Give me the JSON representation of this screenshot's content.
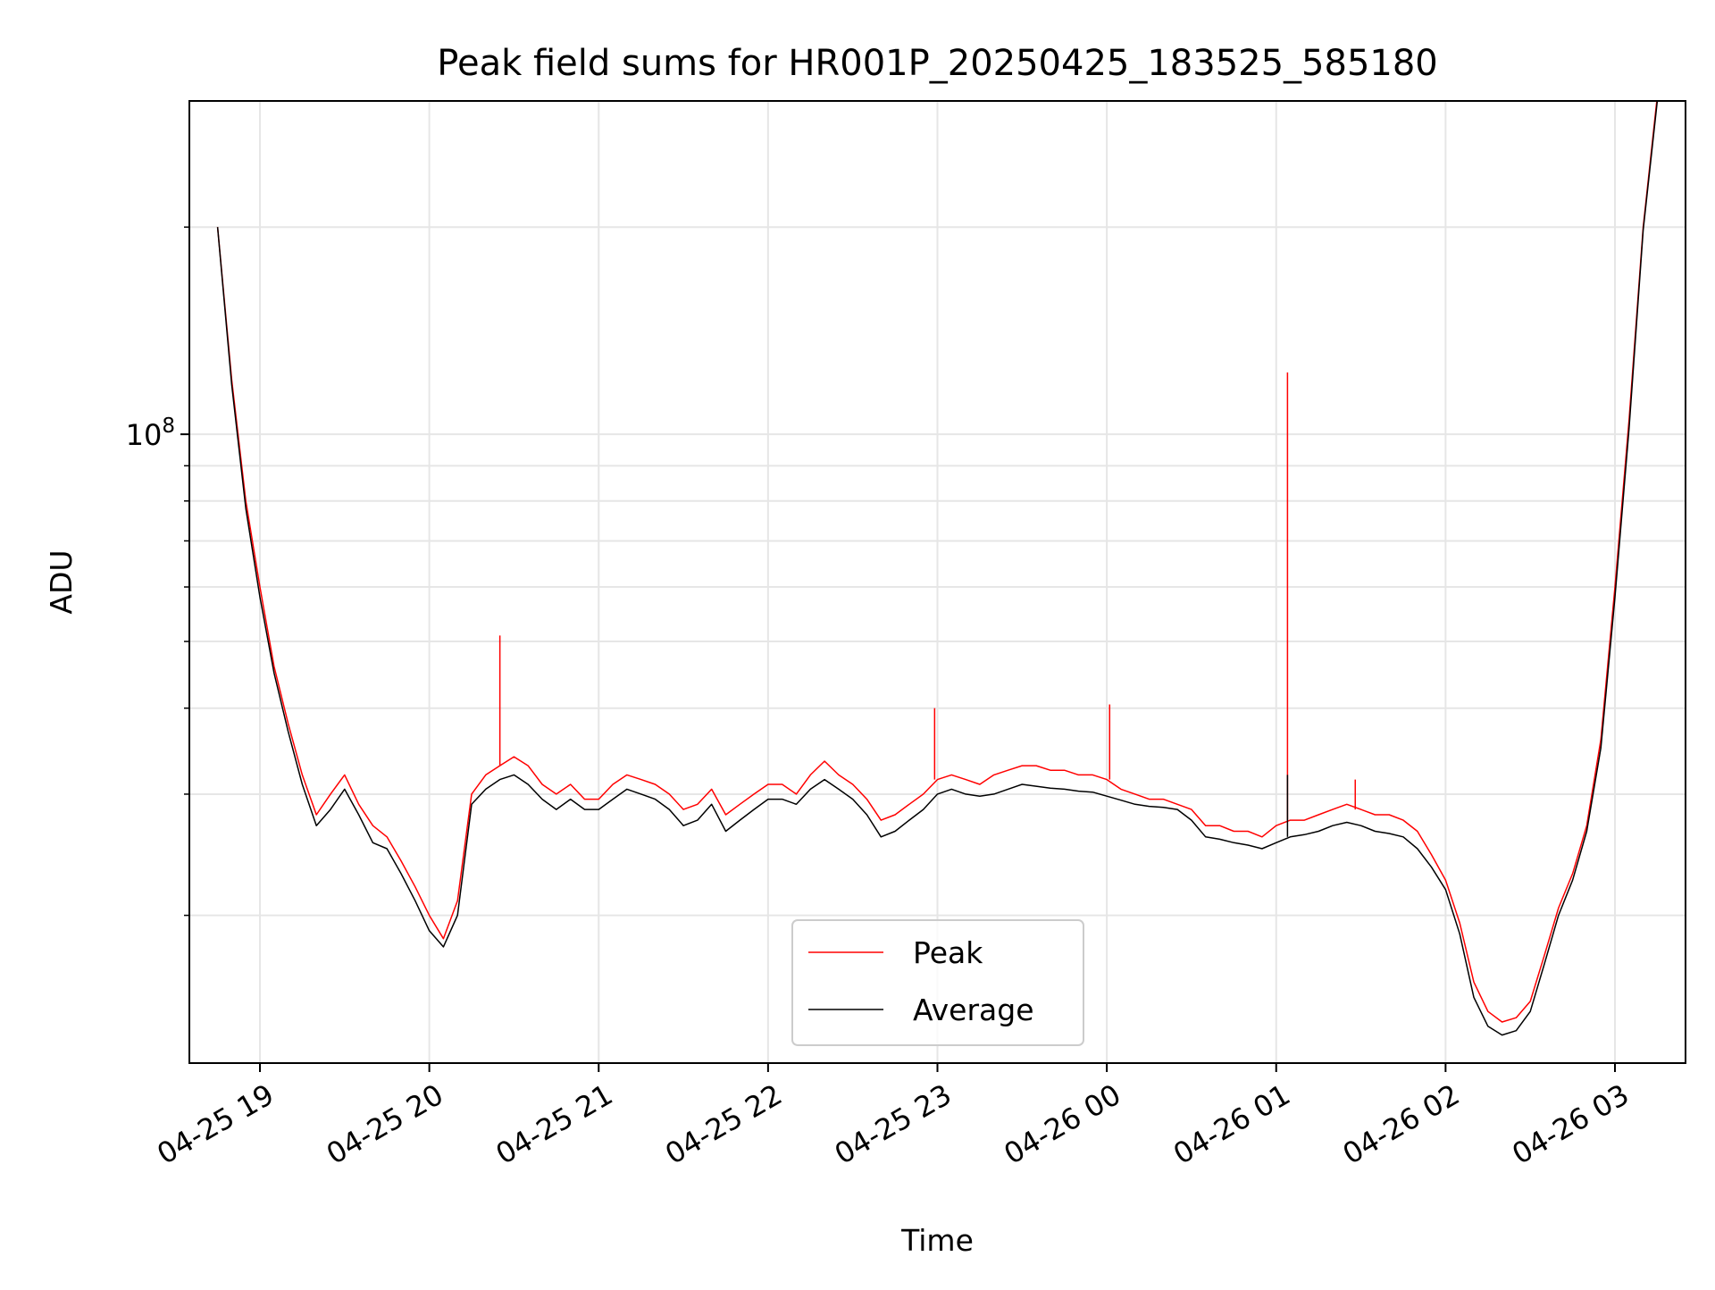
{
  "chart_data": {
    "type": "line",
    "title": "Peak field sums for HR001P_20250425_183525_585180",
    "xlabel": "Time",
    "ylabel": "ADU",
    "yscale": "log",
    "grid": true,
    "legend_position": "bottom-center",
    "xlim": [
      "2025-04-25 18:35",
      "2025-04-26 03:25"
    ],
    "ylim": [
      12200000,
      305000000
    ],
    "x_ticks": [
      {
        "value": "2025-04-25 19:00",
        "label": "04-25 19"
      },
      {
        "value": "2025-04-25 20:00",
        "label": "04-25 20"
      },
      {
        "value": "2025-04-25 21:00",
        "label": "04-25 21"
      },
      {
        "value": "2025-04-25 22:00",
        "label": "04-25 22"
      },
      {
        "value": "2025-04-25 23:00",
        "label": "04-25 23"
      },
      {
        "value": "2025-04-26 00:00",
        "label": "04-26 00"
      },
      {
        "value": "2025-04-26 01:00",
        "label": "04-26 01"
      },
      {
        "value": "2025-04-26 02:00",
        "label": "04-26 02"
      },
      {
        "value": "2025-04-26 03:00",
        "label": "04-26 03"
      }
    ],
    "y_major_ticks": [
      {
        "value": 100000000,
        "base": "10",
        "exponent": "8"
      }
    ],
    "y_minor_ticks": [
      20000000,
      30000000,
      40000000,
      50000000,
      60000000,
      70000000,
      80000000,
      90000000,
      200000000
    ],
    "series": [
      {
        "name": "Peak",
        "color": "#ff0000",
        "x": [
          "2025-04-25 18:45",
          "2025-04-25 18:50",
          "2025-04-25 18:55",
          "2025-04-25 19:00",
          "2025-04-25 19:05",
          "2025-04-25 19:10",
          "2025-04-25 19:15",
          "2025-04-25 19:20",
          "2025-04-25 19:25",
          "2025-04-25 19:30",
          "2025-04-25 19:35",
          "2025-04-25 19:40",
          "2025-04-25 19:45",
          "2025-04-25 19:50",
          "2025-04-25 19:55",
          "2025-04-25 20:00",
          "2025-04-25 20:05",
          "2025-04-25 20:10",
          "2025-04-25 20:15",
          "2025-04-25 20:20",
          "2025-04-25 20:25",
          "2025-04-25 20:30",
          "2025-04-25 20:35",
          "2025-04-25 20:40",
          "2025-04-25 20:45",
          "2025-04-25 20:50",
          "2025-04-25 20:55",
          "2025-04-25 21:00",
          "2025-04-25 21:05",
          "2025-04-25 21:10",
          "2025-04-25 21:15",
          "2025-04-25 21:20",
          "2025-04-25 21:25",
          "2025-04-25 21:30",
          "2025-04-25 21:35",
          "2025-04-25 21:40",
          "2025-04-25 21:45",
          "2025-04-25 21:50",
          "2025-04-25 21:55",
          "2025-04-25 22:00",
          "2025-04-25 22:05",
          "2025-04-25 22:10",
          "2025-04-25 22:15",
          "2025-04-25 22:20",
          "2025-04-25 22:25",
          "2025-04-25 22:30",
          "2025-04-25 22:35",
          "2025-04-25 22:40",
          "2025-04-25 22:45",
          "2025-04-25 22:50",
          "2025-04-25 22:55",
          "2025-04-25 23:00",
          "2025-04-25 23:05",
          "2025-04-25 23:10",
          "2025-04-25 23:15",
          "2025-04-25 23:20",
          "2025-04-25 23:25",
          "2025-04-25 23:30",
          "2025-04-25 23:35",
          "2025-04-25 23:40",
          "2025-04-25 23:45",
          "2025-04-25 23:50",
          "2025-04-25 23:55",
          "2025-04-26 00:00",
          "2025-04-26 00:05",
          "2025-04-26 00:10",
          "2025-04-26 00:15",
          "2025-04-26 00:20",
          "2025-04-26 00:25",
          "2025-04-26 00:30",
          "2025-04-26 00:35",
          "2025-04-26 00:40",
          "2025-04-26 00:45",
          "2025-04-26 00:50",
          "2025-04-26 00:55",
          "2025-04-26 01:00",
          "2025-04-26 01:05",
          "2025-04-26 01:10",
          "2025-04-26 01:15",
          "2025-04-26 01:20",
          "2025-04-26 01:25",
          "2025-04-26 01:30",
          "2025-04-26 01:35",
          "2025-04-26 01:40",
          "2025-04-26 01:45",
          "2025-04-26 01:50",
          "2025-04-26 01:55",
          "2025-04-26 02:00",
          "2025-04-26 02:05",
          "2025-04-26 02:10",
          "2025-04-26 02:15",
          "2025-04-26 02:20",
          "2025-04-26 02:25",
          "2025-04-26 02:30",
          "2025-04-26 02:35",
          "2025-04-26 02:40",
          "2025-04-26 02:45",
          "2025-04-26 02:50",
          "2025-04-26 02:55",
          "2025-04-26 03:00",
          "2025-04-26 03:05",
          "2025-04-26 03:10",
          "2025-04-26 03:15"
        ],
        "values": [
          200000000,
          120000000,
          80000000,
          60000000,
          46000000,
          38000000,
          32000000,
          28000000,
          30000000,
          32000000,
          29000000,
          27000000,
          26000000,
          24000000,
          22000000,
          20000000,
          18500000,
          21000000,
          30000000,
          32000000,
          33000000,
          34000000,
          33000000,
          31000000,
          30000000,
          31000000,
          29500000,
          29500000,
          31000000,
          32000000,
          31500000,
          31000000,
          30000000,
          28500000,
          29000000,
          30500000,
          28000000,
          29000000,
          30000000,
          31000000,
          31000000,
          30000000,
          32000000,
          33500000,
          32000000,
          31000000,
          29500000,
          27500000,
          28000000,
          29000000,
          30000000,
          31500000,
          32000000,
          31500000,
          31000000,
          32000000,
          32500000,
          33000000,
          33000000,
          32500000,
          32500000,
          32000000,
          32000000,
          31500000,
          30500000,
          30000000,
          29500000,
          29500000,
          29000000,
          28500000,
          27000000,
          27000000,
          26500000,
          26500000,
          26000000,
          27000000,
          27500000,
          27500000,
          28000000,
          28500000,
          29000000,
          28500000,
          28000000,
          28000000,
          27500000,
          26500000,
          24500000,
          22500000,
          19500000,
          16000000,
          14500000,
          14000000,
          14200000,
          15000000,
          17500000,
          20500000,
          23000000,
          27000000,
          36000000,
          60000000,
          105000000,
          200000000,
          310000000
        ]
      },
      {
        "name": "Average",
        "color": "#000000",
        "x": [
          "2025-04-25 18:45",
          "2025-04-25 18:50",
          "2025-04-25 18:55",
          "2025-04-25 19:00",
          "2025-04-25 19:05",
          "2025-04-25 19:10",
          "2025-04-25 19:15",
          "2025-04-25 19:20",
          "2025-04-25 19:25",
          "2025-04-25 19:30",
          "2025-04-25 19:35",
          "2025-04-25 19:40",
          "2025-04-25 19:45",
          "2025-04-25 19:50",
          "2025-04-25 19:55",
          "2025-04-25 20:00",
          "2025-04-25 20:05",
          "2025-04-25 20:10",
          "2025-04-25 20:15",
          "2025-04-25 20:20",
          "2025-04-25 20:25",
          "2025-04-25 20:30",
          "2025-04-25 20:35",
          "2025-04-25 20:40",
          "2025-04-25 20:45",
          "2025-04-25 20:50",
          "2025-04-25 20:55",
          "2025-04-25 21:00",
          "2025-04-25 21:05",
          "2025-04-25 21:10",
          "2025-04-25 21:15",
          "2025-04-25 21:20",
          "2025-04-25 21:25",
          "2025-04-25 21:30",
          "2025-04-25 21:35",
          "2025-04-25 21:40",
          "2025-04-25 21:45",
          "2025-04-25 21:50",
          "2025-04-25 21:55",
          "2025-04-25 22:00",
          "2025-04-25 22:05",
          "2025-04-25 22:10",
          "2025-04-25 22:15",
          "2025-04-25 22:20",
          "2025-04-25 22:25",
          "2025-04-25 22:30",
          "2025-04-25 22:35",
          "2025-04-25 22:40",
          "2025-04-25 22:45",
          "2025-04-25 22:50",
          "2025-04-25 22:55",
          "2025-04-25 23:00",
          "2025-04-25 23:05",
          "2025-04-25 23:10",
          "2025-04-25 23:15",
          "2025-04-25 23:20",
          "2025-04-25 23:25",
          "2025-04-25 23:30",
          "2025-04-25 23:35",
          "2025-04-25 23:40",
          "2025-04-25 23:45",
          "2025-04-25 23:50",
          "2025-04-25 23:55",
          "2025-04-26 00:00",
          "2025-04-26 00:05",
          "2025-04-26 00:10",
          "2025-04-26 00:15",
          "2025-04-26 00:20",
          "2025-04-26 00:25",
          "2025-04-26 00:30",
          "2025-04-26 00:35",
          "2025-04-26 00:40",
          "2025-04-26 00:45",
          "2025-04-26 00:50",
          "2025-04-26 00:55",
          "2025-04-26 01:00",
          "2025-04-26 01:05",
          "2025-04-26 01:10",
          "2025-04-26 01:15",
          "2025-04-26 01:20",
          "2025-04-26 01:25",
          "2025-04-26 01:30",
          "2025-04-26 01:35",
          "2025-04-26 01:40",
          "2025-04-26 01:45",
          "2025-04-26 01:50",
          "2025-04-26 01:55",
          "2025-04-26 02:00",
          "2025-04-26 02:05",
          "2025-04-26 02:10",
          "2025-04-26 02:15",
          "2025-04-26 02:20",
          "2025-04-26 02:25",
          "2025-04-26 02:30",
          "2025-04-26 02:35",
          "2025-04-26 02:40",
          "2025-04-26 02:45",
          "2025-04-26 02:50",
          "2025-04-26 02:55",
          "2025-04-26 03:00",
          "2025-04-26 03:05",
          "2025-04-26 03:10",
          "2025-04-26 03:15"
        ],
        "values": [
          200000000,
          118000000,
          78000000,
          58000000,
          45000000,
          37000000,
          31000000,
          27000000,
          28500000,
          30500000,
          28000000,
          25500000,
          25000000,
          23000000,
          21000000,
          19000000,
          18000000,
          20000000,
          29000000,
          30500000,
          31500000,
          32000000,
          31000000,
          29500000,
          28500000,
          29500000,
          28500000,
          28500000,
          29500000,
          30500000,
          30000000,
          29500000,
          28500000,
          27000000,
          27500000,
          29000000,
          26500000,
          27500000,
          28500000,
          29500000,
          29500000,
          29000000,
          30500000,
          31500000,
          30500000,
          29500000,
          28000000,
          26000000,
          26500000,
          27500000,
          28500000,
          30000000,
          30500000,
          30000000,
          29800000,
          30000000,
          30500000,
          31000000,
          30800000,
          30600000,
          30500000,
          30300000,
          30200000,
          29800000,
          29400000,
          29000000,
          28800000,
          28700000,
          28500000,
          27500000,
          26000000,
          25800000,
          25500000,
          25300000,
          25000000,
          25500000,
          26000000,
          26200000,
          26500000,
          27000000,
          27300000,
          27000000,
          26500000,
          26300000,
          26000000,
          25000000,
          23500000,
          21800000,
          18800000,
          15200000,
          13800000,
          13400000,
          13600000,
          14500000,
          17000000,
          20000000,
          22500000,
          26500000,
          35000000,
          58000000,
          102000000,
          198000000,
          305000000
        ]
      }
    ],
    "spikes": [
      {
        "series": "Peak",
        "x": "2025-04-25 20:25",
        "value": 51000000
      },
      {
        "series": "Peak",
        "x": "2025-04-25 22:59",
        "value": 40000000
      },
      {
        "series": "Peak",
        "x": "2025-04-26 00:01",
        "value": 40500000
      },
      {
        "series": "Peak",
        "x": "2025-04-26 01:04",
        "value": 123000000
      },
      {
        "series": "Average",
        "x": "2025-04-26 01:04",
        "value": 32000000
      },
      {
        "series": "Peak",
        "x": "2025-04-26 01:28",
        "value": 31500000
      }
    ]
  }
}
